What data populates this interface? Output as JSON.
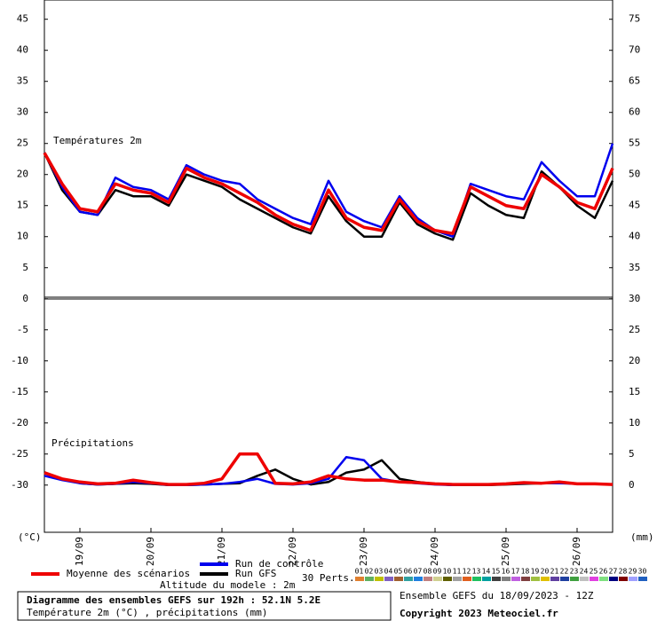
{
  "chart_data": {
    "type": "line",
    "panel_labels": [
      "Températures 2m",
      "Précipitations"
    ],
    "y_unit": "(°C)",
    "y2_unit": "(mm)",
    "x": [
      0,
      6,
      12,
      18,
      24,
      30,
      36,
      42,
      48,
      54,
      60,
      66,
      72,
      78,
      84,
      90,
      96,
      102,
      108,
      114,
      120,
      126,
      132,
      138,
      144,
      150,
      156,
      162,
      168,
      174,
      180,
      186,
      192
    ],
    "xlim": [
      0,
      192
    ],
    "xticks": [
      {
        "value": 12,
        "label": "19/09"
      },
      {
        "value": 36,
        "label": "20/09"
      },
      {
        "value": 60,
        "label": "21/09"
      },
      {
        "value": 84,
        "label": "22/09"
      },
      {
        "value": 108,
        "label": "23/09"
      },
      {
        "value": 132,
        "label": "24/09"
      },
      {
        "value": 156,
        "label": "25/09"
      },
      {
        "value": 180,
        "label": "26/09"
      }
    ],
    "ylim": [
      -37.6,
      48.1
    ],
    "yticks": [
      45,
      40,
      35,
      30,
      25,
      20,
      15,
      10,
      5,
      0,
      -5,
      -10,
      -15,
      -20,
      -25,
      -30
    ],
    "y2lim": [
      -7.6,
      78.1
    ],
    "y2ticks": [
      75,
      70,
      65,
      60,
      55,
      50,
      45,
      40,
      35,
      30,
      25,
      20,
      15,
      10,
      5,
      0
    ],
    "series": [
      {
        "name": "Run GFS",
        "color": "#000000",
        "values": [
          23.5,
          17.5,
          14,
          13.5,
          17.5,
          16.5,
          16.5,
          15,
          20,
          19,
          18,
          16,
          14.5,
          13,
          11.5,
          10.5,
          16.5,
          12.5,
          10,
          10,
          15.5,
          12,
          10.5,
          9.5,
          17,
          15,
          13.5,
          13,
          20.5,
          18,
          15,
          13,
          19
        ]
      },
      {
        "name": "Run de contrôle",
        "color": "#0000ee",
        "values": [
          23.5,
          18,
          14,
          13.5,
          19.5,
          18,
          17.5,
          16,
          21.5,
          20,
          19,
          18.5,
          16,
          14.5,
          13,
          12,
          19,
          14,
          12.5,
          11.5,
          16.5,
          13,
          11,
          10,
          18.5,
          17.5,
          16.5,
          16,
          22,
          19,
          16.5,
          16.5,
          25
        ]
      },
      {
        "name": "Moyenne des scénarios",
        "color": "#ee0000",
        "values": [
          23.5,
          18.5,
          14.5,
          14,
          18.5,
          17.5,
          17,
          15.5,
          21,
          19.5,
          18.5,
          17,
          15.5,
          13.5,
          12,
          11,
          17.5,
          13,
          11.5,
          11,
          16,
          12.5,
          11,
          10.5,
          18,
          16.5,
          15,
          14.5,
          20,
          18,
          15.5,
          14.5,
          21
        ]
      },
      {
        "axis": "y2",
        "color": "#000000",
        "values": [
          2,
          1,
          0.3,
          0.1,
          0.2,
          0.3,
          0.2,
          0,
          0,
          0.1,
          0.2,
          0.3,
          1.5,
          2.5,
          1,
          0.1,
          0.5,
          2,
          2.5,
          4,
          1,
          0.5,
          0.2,
          0,
          0,
          0,
          0.1,
          0.2,
          0.3,
          0.4,
          0.2,
          0.2,
          0.1
        ]
      },
      {
        "axis": "y2",
        "color": "#0000ee",
        "values": [
          1.5,
          0.8,
          0.3,
          0.1,
          0.2,
          0.5,
          0.3,
          0,
          0,
          0.1,
          0.2,
          0.5,
          1,
          0.2,
          0.1,
          0.3,
          1,
          4.5,
          4,
          1,
          0.5,
          0.3,
          0.1,
          0,
          0.1,
          0.1,
          0.2,
          0.3,
          0.3,
          0.3,
          0.2,
          0.2,
          0.1
        ]
      },
      {
        "axis": "y2",
        "color": "#ee0000",
        "values": [
          2,
          1,
          0.5,
          0.2,
          0.3,
          0.8,
          0.4,
          0.1,
          0.1,
          0.3,
          1,
          5,
          5,
          0.3,
          0.2,
          0.5,
          1.5,
          1,
          0.8,
          0.8,
          0.5,
          0.4,
          0.2,
          0.1,
          0.1,
          0.1,
          0.2,
          0.4,
          0.3,
          0.5,
          0.2,
          0.2,
          0.1
        ]
      }
    ],
    "perturbations": {
      "label": "30 Perts.",
      "numbers": [
        "01",
        "02",
        "03",
        "04",
        "05",
        "06",
        "07",
        "08",
        "09",
        "10",
        "11",
        "12",
        "13",
        "14",
        "15",
        "16",
        "17",
        "18",
        "19",
        "20",
        "21",
        "22",
        "23",
        "24",
        "25",
        "26",
        "27",
        "28",
        "29",
        "30"
      ],
      "colors": [
        "#e08030",
        "#60b060",
        "#c0c000",
        "#8060c0",
        "#a06030",
        "#30a0a0",
        "#2080e0",
        "#c08080",
        "#d0d090",
        "#606000",
        "#a0a0a0",
        "#e06020",
        "#20c060",
        "#00a0a0",
        "#404040",
        "#808080",
        "#c060e0",
        "#804040",
        "#a0c040",
        "#e0c000",
        "#6040a0",
        "#2040a0",
        "#40a040",
        "#c0c0c0",
        "#e040e0",
        "#80e080",
        "#000080",
        "#800000",
        "#a0a0ff",
        "#2060c0"
      ]
    },
    "altitude": "Altitude du modele : 2m",
    "box_title": "Diagramme des ensembles GEFS sur 192h : 52.1N 5.2E",
    "box_subtitle": "Température 2m (°C) , précipitations (mm)",
    "run_info": "Ensemble GEFS du 18/09/2023 - 12Z",
    "copyright": "Copyright 2023 Meteociel.fr"
  }
}
